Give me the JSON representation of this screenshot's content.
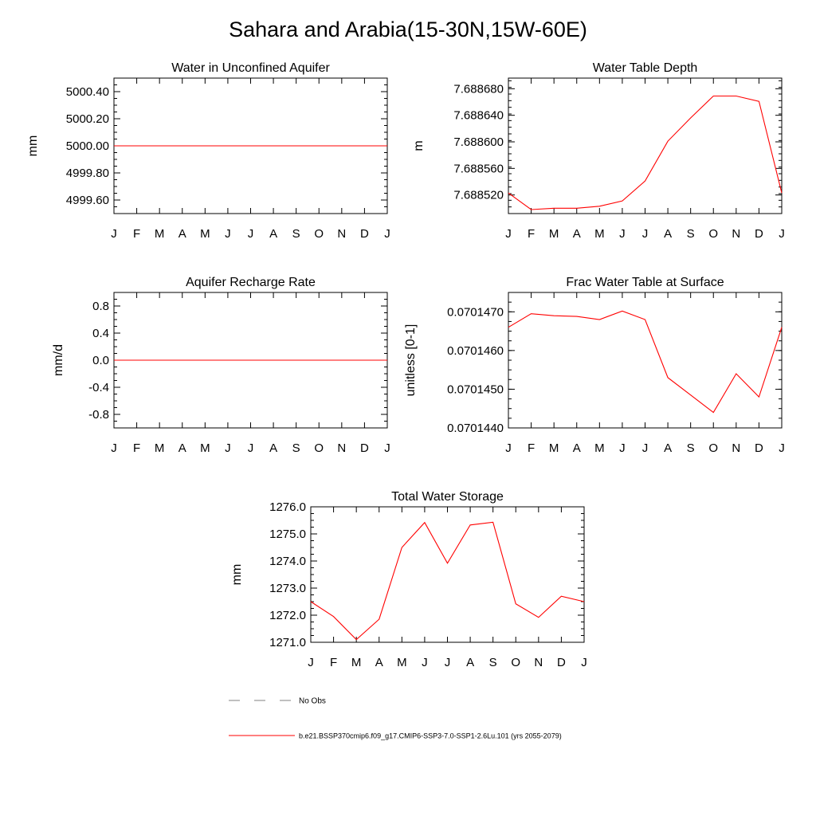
{
  "page_title": "Sahara and Arabia(15-30N,15W-60E)",
  "legend": {
    "obs_label": "No Obs",
    "model_label": "b.e21.BSSP370cmip6.f09_g17.CMIP6-SSP3-7.0-SSP1-2.6Lu.101 (yrs 2055-2079)",
    "obs_color": "#808080",
    "model_color": "#ff0000"
  },
  "chart_data": [
    {
      "type": "line",
      "title": "Water in Unconfined Aquifer",
      "ylabel": "mm",
      "xlabel": "",
      "x": [
        "J",
        "F",
        "M",
        "A",
        "M",
        "J",
        "J",
        "A",
        "S",
        "O",
        "N",
        "D",
        "J"
      ],
      "ylim": [
        4999.5,
        5000.5
      ],
      "yticks": [
        4999.6,
        4999.8,
        5000.0,
        5000.2,
        5000.4
      ],
      "ytick_labels": [
        "4999.60",
        "4999.80",
        "5000.00",
        "5000.20",
        "5000.40"
      ],
      "series": [
        {
          "values": [
            5000.0,
            5000.0,
            5000.0,
            5000.0,
            5000.0,
            5000.0,
            5000.0,
            5000.0,
            5000.0,
            5000.0,
            5000.0,
            5000.0,
            5000.0
          ],
          "color": "#ff0000"
        }
      ]
    },
    {
      "type": "line",
      "title": "Water Table Depth",
      "ylabel": "m",
      "xlabel": "",
      "x": [
        "J",
        "F",
        "M",
        "A",
        "M",
        "J",
        "J",
        "A",
        "S",
        "O",
        "N",
        "D",
        "J"
      ],
      "ylim": [
        7.688492,
        7.688696
      ],
      "yticks": [
        7.68852,
        7.68856,
        7.6886,
        7.68864,
        7.68868
      ],
      "ytick_labels": [
        "7.688520",
        "7.688560",
        "7.688600",
        "7.688640",
        "7.688680"
      ],
      "series": [
        {
          "values": [
            7.688523,
            7.688498,
            7.6885,
            7.6885,
            7.688503,
            7.688511,
            7.688541,
            7.688601,
            7.688636,
            7.688669,
            7.688669,
            7.688661,
            7.688523
          ],
          "color": "#ff0000"
        }
      ]
    },
    {
      "type": "line",
      "title": "Aquifer Recharge Rate",
      "ylabel": "mm/d",
      "xlabel": "",
      "x": [
        "J",
        "F",
        "M",
        "A",
        "M",
        "J",
        "J",
        "A",
        "S",
        "O",
        "N",
        "D",
        "J"
      ],
      "ylim": [
        -1.0,
        1.0
      ],
      "yticks": [
        -0.8,
        -0.4,
        0.0,
        0.4,
        0.8
      ],
      "ytick_labels": [
        "-0.8",
        "-0.4",
        "0.0",
        "0.4",
        "0.8"
      ],
      "series": [
        {
          "values": [
            0,
            0,
            0,
            0,
            0,
            0,
            0,
            0,
            0,
            0,
            0,
            0,
            0
          ],
          "color": "#ff0000"
        }
      ]
    },
    {
      "type": "line",
      "title": "Frac Water Table at Surface",
      "ylabel": "unitless [0-1]",
      "xlabel": "",
      "x": [
        "J",
        "F",
        "M",
        "A",
        "M",
        "J",
        "J",
        "A",
        "S",
        "O",
        "N",
        "D",
        "J"
      ],
      "ylim": [
        0.070144,
        0.0701475
      ],
      "yticks": [
        0.070144,
        0.070145,
        0.070146,
        0.070147
      ],
      "ytick_labels": [
        "0.0701440",
        "0.0701450",
        "0.0701460",
        "0.0701470"
      ],
      "series": [
        {
          "values": [
            0.0701466,
            0.07014695,
            0.0701469,
            0.07014688,
            0.0701468,
            0.07014702,
            0.0701468,
            0.0701453,
            0.07014485,
            0.0701444,
            0.0701454,
            0.0701448,
            0.0701466
          ],
          "color": "#ff0000"
        }
      ]
    },
    {
      "type": "line",
      "title": "Total Water Storage",
      "ylabel": "mm",
      "xlabel": "",
      "x": [
        "J",
        "F",
        "M",
        "A",
        "M",
        "J",
        "J",
        "A",
        "S",
        "O",
        "N",
        "D",
        "J"
      ],
      "ylim": [
        1271.0,
        1276.0
      ],
      "yticks": [
        1271.0,
        1272.0,
        1273.0,
        1274.0,
        1275.0,
        1276.0
      ],
      "ytick_labels": [
        "1271.0",
        "1272.0",
        "1273.0",
        "1274.0",
        "1275.0",
        "1276.0"
      ],
      "series": [
        {
          "values": [
            1272.5,
            1271.95,
            1271.1,
            1271.85,
            1274.5,
            1275.42,
            1273.92,
            1275.33,
            1275.43,
            1272.42,
            1271.92,
            1272.7,
            1272.5
          ],
          "color": "#ff0000"
        }
      ]
    }
  ]
}
